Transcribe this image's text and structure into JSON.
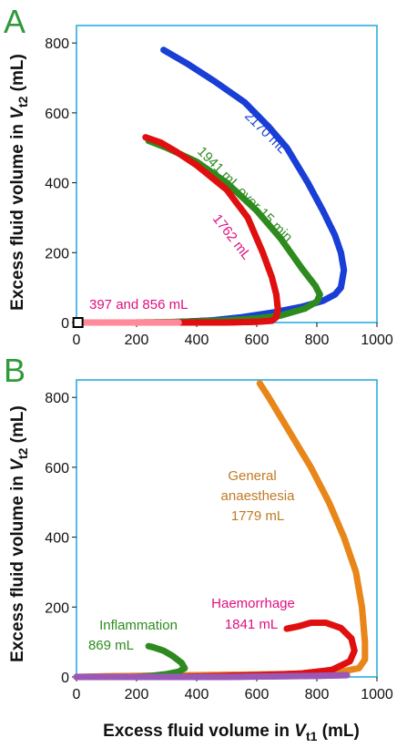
{
  "chart_data": [
    {
      "panel_label": "A",
      "type": "scatter",
      "xlim": [
        0,
        1000
      ],
      "ylim": [
        0,
        850
      ],
      "x_ticks": [
        "0",
        "200",
        "400",
        "600",
        "800",
        "1000"
      ],
      "y_ticks": [
        "0",
        "200",
        "400",
        "600",
        "800"
      ],
      "ylabel": "Excess fluid volume in ",
      "ylabel_var": "V",
      "ylabel_sub": "t2",
      "ylabel_unit": " (mL)",
      "grid": false,
      "series": [
        {
          "name": "2170 mL",
          "color": "#1a3fd6",
          "points": [
            [
              270,
              0
            ],
            [
              350,
              2
            ],
            [
              450,
              6
            ],
            [
              550,
              15
            ],
            [
              650,
              28
            ],
            [
              750,
              45
            ],
            [
              820,
              62
            ],
            [
              860,
              80
            ],
            [
              880,
              100
            ],
            [
              890,
              150
            ],
            [
              880,
              200
            ],
            [
              860,
              250
            ],
            [
              820,
              320
            ],
            [
              770,
              400
            ],
            [
              700,
              500
            ],
            [
              640,
              560
            ],
            [
              560,
              630
            ],
            [
              460,
              690
            ],
            [
              370,
              740
            ],
            [
              290,
              780
            ]
          ]
        },
        {
          "name": "1941 mL over 15 min",
          "color": "#2e8b1f",
          "points": [
            [
              200,
              0
            ],
            [
              300,
              1
            ],
            [
              400,
              3
            ],
            [
              500,
              6
            ],
            [
              600,
              12
            ],
            [
              680,
              20
            ],
            [
              760,
              40
            ],
            [
              800,
              60
            ],
            [
              810,
              80
            ],
            [
              795,
              105
            ],
            [
              750,
              155
            ],
            [
              680,
              240
            ],
            [
              600,
              320
            ],
            [
              500,
              400
            ],
            [
              400,
              460
            ],
            [
              300,
              500
            ],
            [
              240,
              520
            ]
          ]
        },
        {
          "name": "1762 mL",
          "color": "#e01010",
          "points": [
            [
              200,
              0
            ],
            [
              300,
              0
            ],
            [
              400,
              0
            ],
            [
              500,
              0
            ],
            [
              600,
              2
            ],
            [
              650,
              5
            ],
            [
              665,
              15
            ],
            [
              670,
              40
            ],
            [
              665,
              80
            ],
            [
              650,
              130
            ],
            [
              620,
              200
            ],
            [
              570,
              300
            ],
            [
              500,
              380
            ],
            [
              400,
              450
            ],
            [
              330,
              490
            ],
            [
              280,
              515
            ],
            [
              230,
              530
            ]
          ]
        },
        {
          "name": "397 and 856 mL",
          "color": "#ff8a9b",
          "points": [
            [
              10,
              0
            ],
            [
              50,
              0
            ],
            [
              100,
              0
            ],
            [
              150,
              0
            ],
            [
              200,
              0
            ],
            [
              250,
              0
            ],
            [
              300,
              0
            ],
            [
              340,
              0
            ]
          ]
        },
        {
          "name": "",
          "color": "#ffffff",
          "points": [
            [
              5,
              0
            ]
          ]
        }
      ],
      "annotations": [
        {
          "text": "2170 mL",
          "color": "#1a3fd6"
        },
        {
          "text": "1941 mL over 15 min",
          "color": "#2e8b1f"
        },
        {
          "text": "1762 mL",
          "color": "#e01080"
        },
        {
          "text": "397 and 856 mL",
          "color": "#e01080"
        }
      ]
    },
    {
      "panel_label": "B",
      "type": "scatter",
      "xlim": [
        0,
        1000
      ],
      "ylim": [
        0,
        850
      ],
      "x_ticks": [
        "0",
        "200",
        "400",
        "600",
        "800",
        "1000"
      ],
      "y_ticks": [
        "0",
        "200",
        "400",
        "600",
        "800"
      ],
      "xlabel": "Excess fluid volume in ",
      "xlabel_var": "V",
      "xlabel_sub": "t1",
      "xlabel_unit": " (mL)",
      "ylabel": "Excess fluid volume in ",
      "ylabel_var": "V",
      "ylabel_sub": "t2",
      "ylabel_unit": " (mL)",
      "grid": false,
      "series": [
        {
          "name": "General anaesthesia 1779 mL",
          "color": "#e8861a",
          "points": [
            [
              0,
              0
            ],
            [
              100,
              2
            ],
            [
              200,
              3
            ],
            [
              300,
              4
            ],
            [
              400,
              5
            ],
            [
              500,
              6
            ],
            [
              600,
              7
            ],
            [
              700,
              8
            ],
            [
              800,
              10
            ],
            [
              880,
              15
            ],
            [
              940,
              25
            ],
            [
              960,
              50
            ],
            [
              960,
              100
            ],
            [
              950,
              200
            ],
            [
              930,
              300
            ],
            [
              890,
              400
            ],
            [
              840,
              500
            ],
            [
              780,
              600
            ],
            [
              710,
              700
            ],
            [
              640,
              800
            ],
            [
              610,
              840
            ]
          ]
        },
        {
          "name": "Haemorrhage 1841 mL",
          "color": "#e01010",
          "points": [
            [
              320,
              0
            ],
            [
              450,
              2
            ],
            [
              600,
              5
            ],
            [
              750,
              10
            ],
            [
              850,
              20
            ],
            [
              910,
              45
            ],
            [
              925,
              75
            ],
            [
              915,
              110
            ],
            [
              880,
              140
            ],
            [
              830,
              155
            ],
            [
              780,
              155
            ],
            [
              740,
              145
            ],
            [
              700,
              138
            ]
          ]
        },
        {
          "name": "Inflammation 869 mL",
          "color": "#2e8b1f",
          "points": [
            [
              200,
              0
            ],
            [
              250,
              3
            ],
            [
              300,
              8
            ],
            [
              340,
              15
            ],
            [
              360,
              25
            ],
            [
              350,
              40
            ],
            [
              320,
              60
            ],
            [
              290,
              75
            ],
            [
              255,
              85
            ],
            [
              240,
              88
            ]
          ]
        },
        {
          "name": "",
          "color": "#9b59b6",
          "points": [
            [
              0,
              0
            ],
            [
              100,
              0
            ],
            [
              200,
              0
            ],
            [
              300,
              0
            ],
            [
              400,
              0
            ],
            [
              500,
              0
            ],
            [
              600,
              1
            ],
            [
              700,
              2
            ],
            [
              800,
              3
            ],
            [
              900,
              5
            ]
          ]
        }
      ],
      "annotations": [
        {
          "text": "General",
          "color": "#c07a22"
        },
        {
          "text": "anaesthesia",
          "color": "#c07a22"
        },
        {
          "text": "1779 mL",
          "color": "#c07a22"
        },
        {
          "text": "Haemorrhage",
          "color": "#e01080"
        },
        {
          "text": "1841 mL",
          "color": "#e01080"
        },
        {
          "text": "Inflammation",
          "color": "#2e8b1f"
        },
        {
          "text": "869 mL",
          "color": "#2e8b1f"
        }
      ]
    }
  ]
}
